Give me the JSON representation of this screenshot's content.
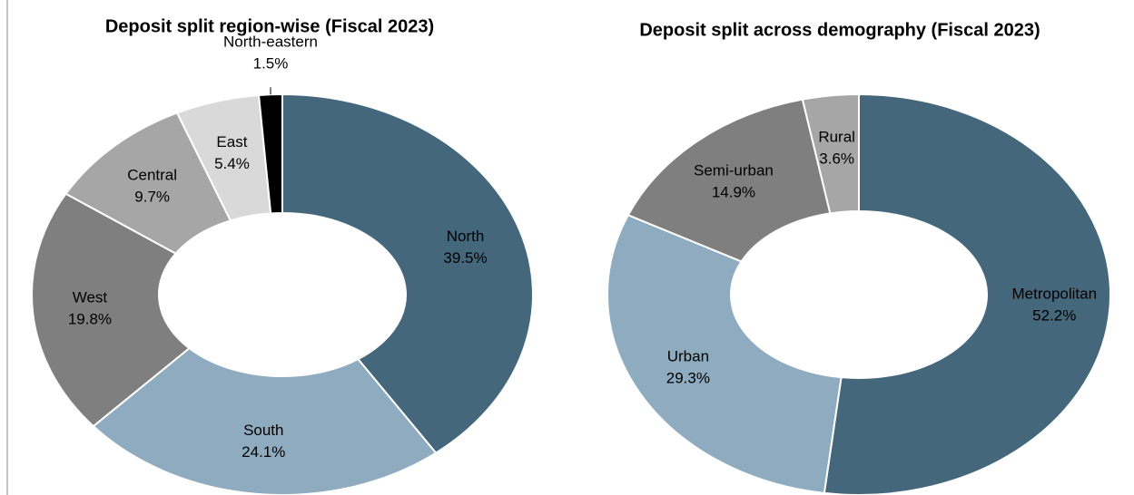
{
  "chart_data": [
    {
      "type": "donut",
      "title": "Deposit split region-wise (Fiscal 2023)",
      "categories": [
        "North",
        "South",
        "West",
        "Central",
        "East",
        "North-eastern"
      ],
      "values": [
        39.5,
        24.1,
        19.8,
        9.7,
        5.4,
        1.5
      ],
      "value_labels": [
        "39.5%",
        "24.1%",
        "19.8%",
        "9.7%",
        "5.4%",
        "1.5%"
      ],
      "colors": [
        "#44677b",
        "#8eabbf",
        "#7f7f7f",
        "#a6a6a6",
        "#d9d9d9",
        "#000000"
      ]
    },
    {
      "type": "donut",
      "title": "Deposit split across demography (Fiscal 2023)",
      "categories": [
        "Metropolitan",
        "Urban",
        "Semi-urban",
        "Rural"
      ],
      "values": [
        52.2,
        29.3,
        14.9,
        3.6
      ],
      "value_labels": [
        "52.2%",
        "29.3%",
        "14.9%",
        "3.6%"
      ],
      "colors": [
        "#44677b",
        "#8eabbf",
        "#7f7f7f",
        "#a6a6a6"
      ]
    }
  ]
}
